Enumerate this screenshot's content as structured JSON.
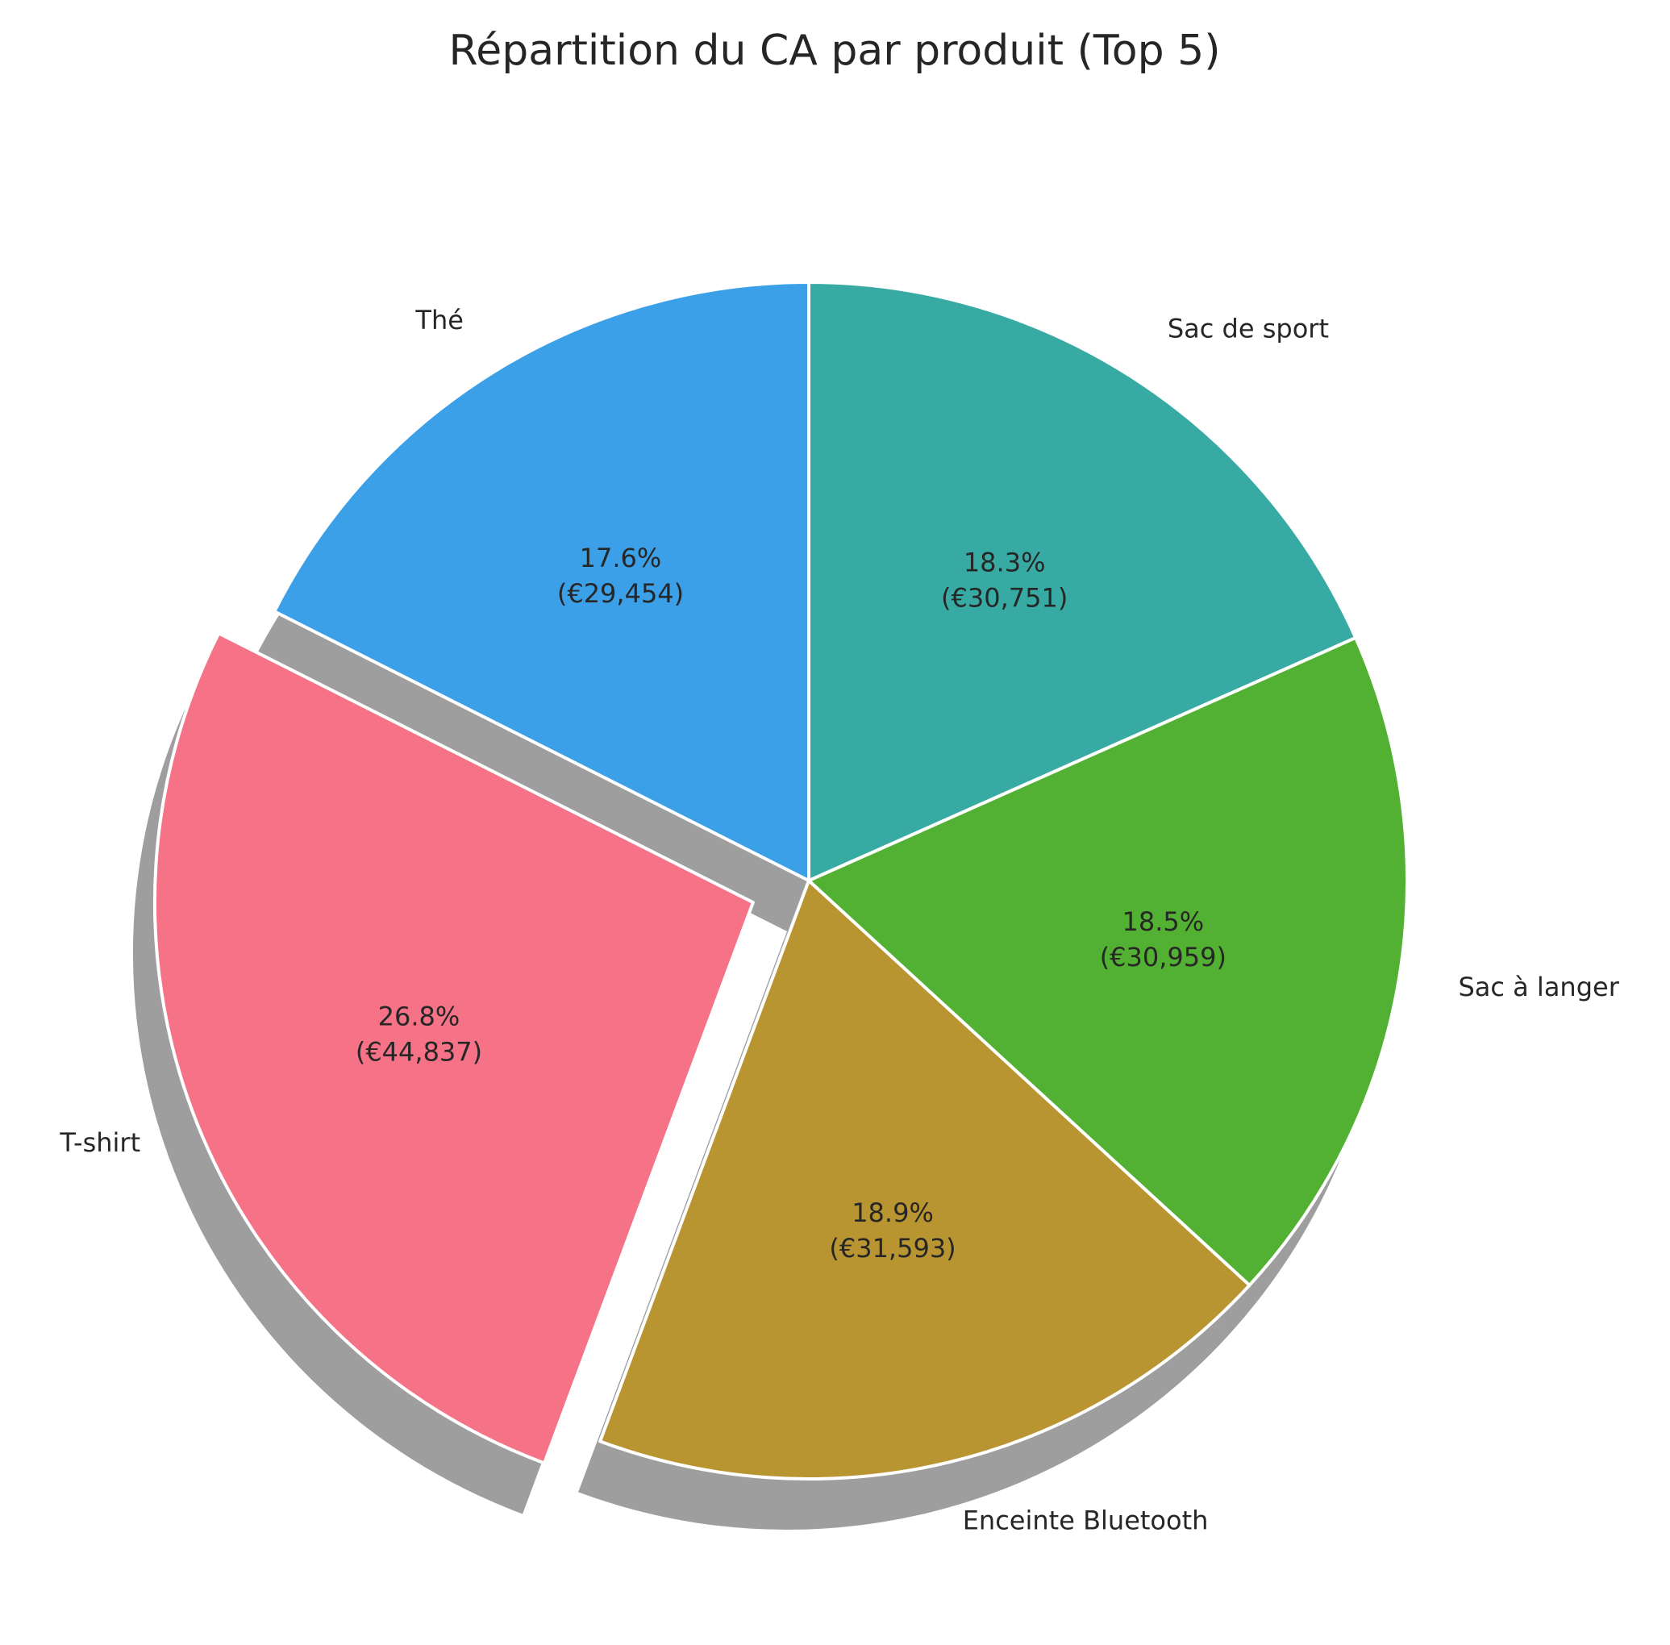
{
  "chart_data": {
    "type": "pie",
    "title": "Répartition du CA par produit (Top 5)",
    "labels": [
      "Thé",
      "T-shirt",
      "Enceinte Bluetooth",
      "Sac à langer",
      "Sac de sport"
    ],
    "values": [
      29454,
      44837,
      31593,
      30959,
      30751
    ],
    "percent_labels": [
      "17.6%",
      "26.8%",
      "18.9%",
      "18.5%",
      "18.3%"
    ],
    "value_labels": [
      "(€29,454)",
      "(€44,837)",
      "(€31,593)",
      "(€30,959)",
      "(€30,751)"
    ],
    "colors": [
      "#3ca0e8",
      "#f57287",
      "#b99532",
      "#52b132",
      "#37aba3"
    ],
    "exploded": [
      "T-shirt"
    ],
    "shadow": true,
    "start_angle_deg": 90,
    "direction": "counterclockwise"
  }
}
